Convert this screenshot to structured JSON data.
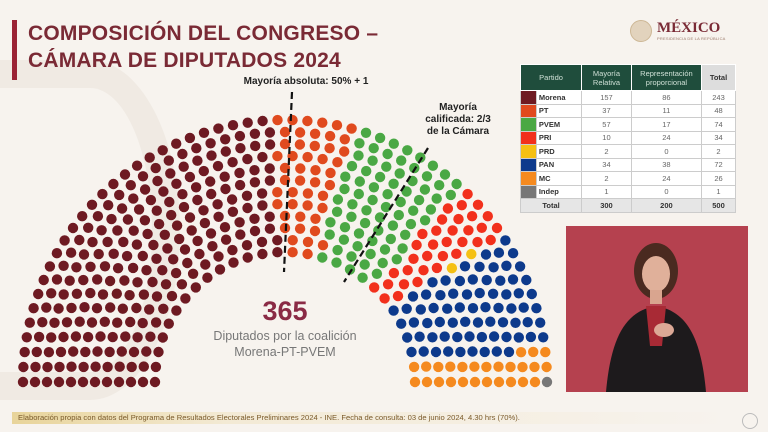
{
  "header": {
    "title_line1": "COMPOSICIÓN DEL CONGRESO –",
    "title_line2": "CÁMARA DE DIPUTADOS 2024",
    "logo_text": "MÉXICO",
    "logo_sub": "PRESIDENCIA DE LA REPÚBLICA"
  },
  "annotations": {
    "absolute": "Mayoría absoluta: 50% + 1",
    "qualified_l1": "Mayoría",
    "qualified_l2": "calificada: 2/3",
    "qualified_l3": "de la Cámara"
  },
  "coalition": {
    "count": "365",
    "line1": "Diputados por la coalición",
    "line2": "Morena-PT-PVEM"
  },
  "table": {
    "headers": [
      "Partido",
      "Mayoría Relativa",
      "Representación proporcional",
      "Total"
    ],
    "rows": [
      {
        "party": "Morena",
        "color": "#6e1a22",
        "mr": "157",
        "rp": "86",
        "total": "243"
      },
      {
        "party": "PT",
        "color": "#e04a1e",
        "mr": "37",
        "rp": "11",
        "total": "48"
      },
      {
        "party": "PVEM",
        "color": "#4aa844",
        "mr": "57",
        "rp": "17",
        "total": "74"
      },
      {
        "party": "PRI",
        "color": "#f2301c",
        "mr": "10",
        "rp": "24",
        "total": "34"
      },
      {
        "party": "PRD",
        "color": "#f5c013",
        "mr": "2",
        "rp": "0",
        "total": "2"
      },
      {
        "party": "PAN",
        "color": "#0d3a8c",
        "mr": "34",
        "rp": "38",
        "total": "72"
      },
      {
        "party": "MC",
        "color": "#f58a1f",
        "mr": "2",
        "rp": "24",
        "total": "26"
      },
      {
        "party": "Indep",
        "color": "#777777",
        "mr": "1",
        "rp": "0",
        "total": "1"
      }
    ],
    "total": {
      "label": "Total",
      "mr": "300",
      "rp": "200",
      "total": "500"
    }
  },
  "chart_data": {
    "type": "hemicycle",
    "title": "Composición del Congreso – Cámara de Diputados 2024",
    "categories": [
      "Morena",
      "PT",
      "PVEM",
      "PRI",
      "PRD",
      "PAN",
      "MC",
      "Indep"
    ],
    "values": [
      243,
      48,
      74,
      34,
      2,
      72,
      26,
      1
    ],
    "total_seats": 500,
    "thresholds": [
      {
        "label": "Mayoría absoluta: 50% + 1",
        "seats": 251
      },
      {
        "label": "Mayoría calificada: 2/3 de la Cámara",
        "seats": 334
      }
    ]
  },
  "footer": {
    "source": "Elaboración propia con datos del Programa de Resultados Electorales Preliminares 2024 - INE. Fecha de consulta: 03 de junio 2024, 4.30 hrs (70%)."
  }
}
